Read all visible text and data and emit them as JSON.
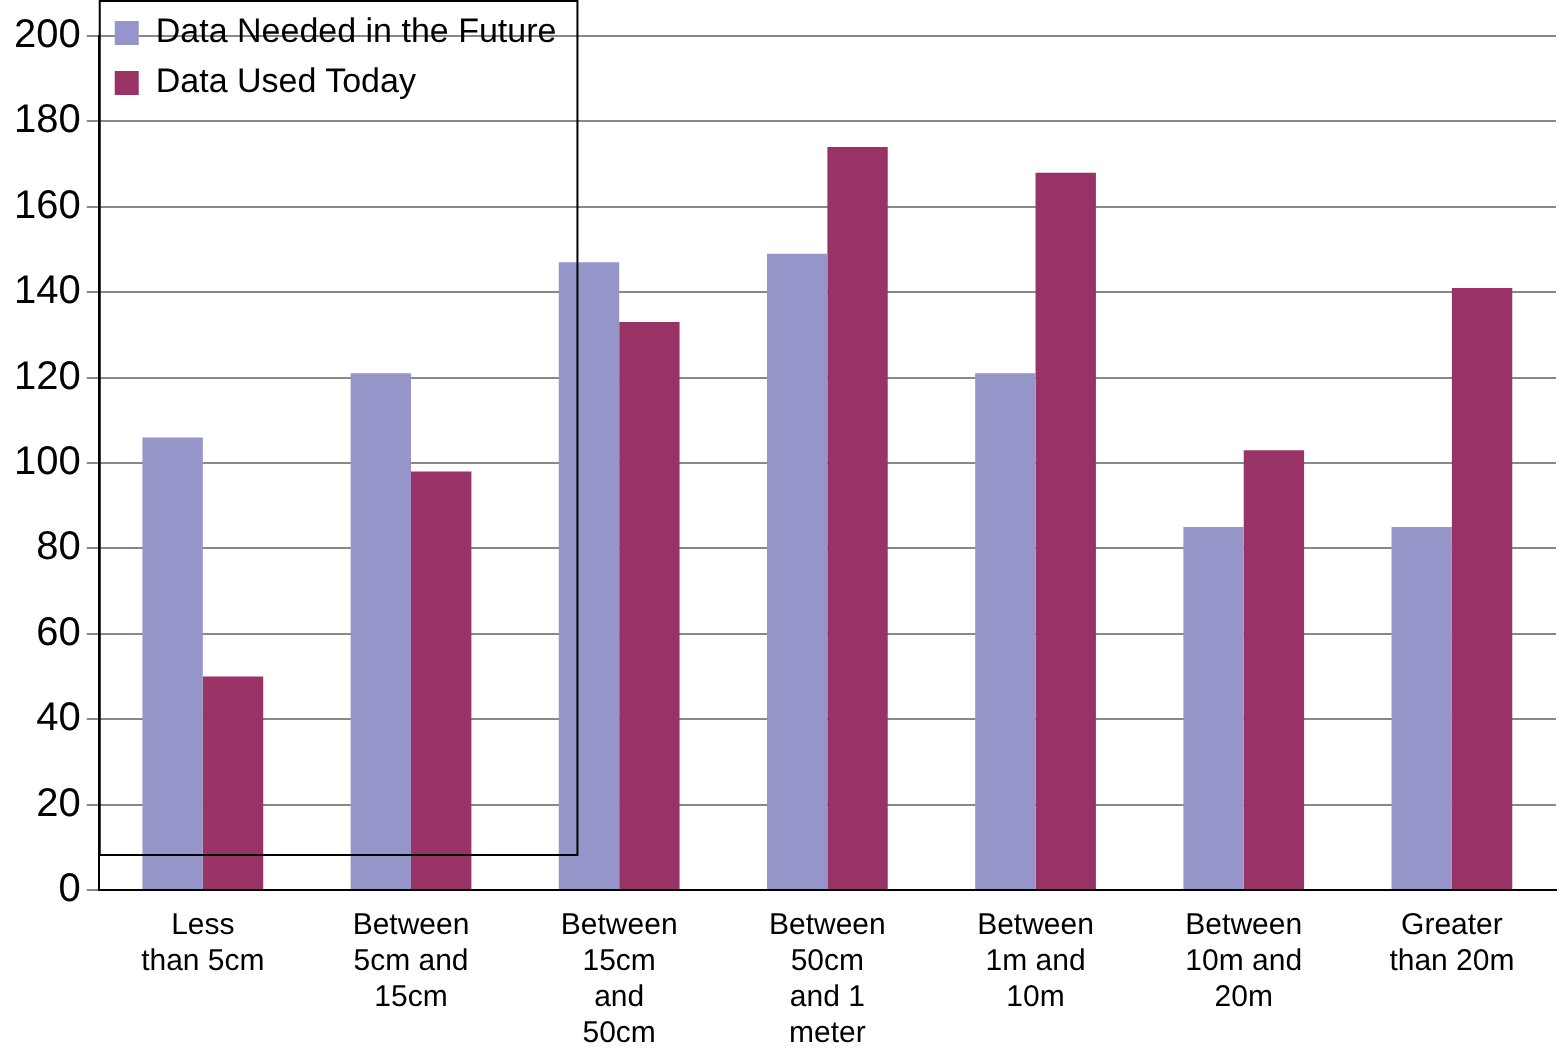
{
  "chart_data": {
    "type": "bar",
    "categories": [
      "Less than 5cm",
      "Between 5cm and 15cm",
      "Between 15cm and 50cm",
      "Between 50cm and 1 meter",
      "Between 1m and 10m",
      "Between 10m and 20m",
      "Greater than 20m"
    ],
    "series": [
      {
        "name": "Data Needed in the Future",
        "color": "#9595c9",
        "values": [
          106,
          121,
          147,
          149,
          121,
          85,
          85
        ]
      },
      {
        "name": "Data Used Today",
        "color": "#993366",
        "values": [
          50,
          98,
          133,
          174,
          168,
          103,
          141
        ]
      }
    ],
    "ylim": [
      0,
      200
    ],
    "yticks": [
      0,
      20,
      40,
      60,
      80,
      100,
      120,
      140,
      160,
      180,
      200
    ],
    "grid": "y",
    "legend": "top left"
  }
}
